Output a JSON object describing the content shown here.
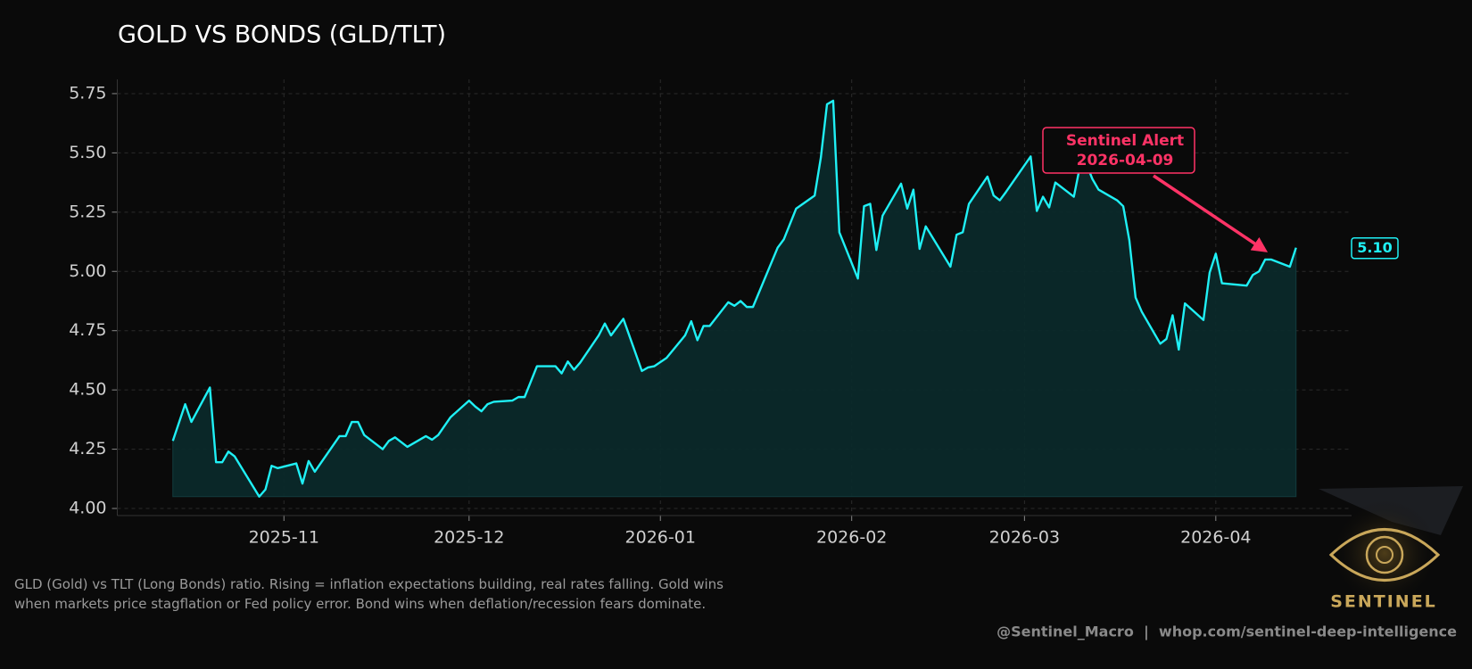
{
  "chart_data": {
    "type": "area-line",
    "title": "GOLD VS BONDS (GLD/TLT)",
    "description": "GLD (Gold) vs TLT (Long Bonds) ratio. Rising = inflation expectations building, real rates falling. Gold wins when markets price stagflation or Fed policy error. Bond wins when deflation/recession fears dominate.",
    "credit": "@Sentinel_Macro  |  whop.com/sentinel-deep-intelligence",
    "logo": "SENTINEL",
    "x": [
      "2025-10-14",
      "2025-10-16",
      "2025-10-17",
      "2025-10-20",
      "2025-10-21",
      "2025-10-22",
      "2025-10-23",
      "2025-10-24",
      "2025-10-28",
      "2025-10-29",
      "2025-10-30",
      "2025-10-31",
      "2025-11-03",
      "2025-11-04",
      "2025-11-05",
      "2025-11-06",
      "2025-11-10",
      "2025-11-11",
      "2025-11-12",
      "2025-11-13",
      "2025-11-14",
      "2025-11-17",
      "2025-11-18",
      "2025-11-19",
      "2025-11-21",
      "2025-11-24",
      "2025-11-25",
      "2025-11-26",
      "2025-11-28",
      "2025-12-01",
      "2025-12-02",
      "2025-12-03",
      "2025-12-04",
      "2025-12-05",
      "2025-12-08",
      "2025-12-09",
      "2025-12-10",
      "2025-12-12",
      "2025-12-15",
      "2025-12-16",
      "2025-12-17",
      "2025-12-18",
      "2025-12-19",
      "2025-12-22",
      "2025-12-23",
      "2025-12-24",
      "2025-12-26",
      "2025-12-29",
      "2025-12-30",
      "2025-12-31",
      "2026-01-02",
      "2026-01-05",
      "2026-01-06",
      "2026-01-07",
      "2026-01-08",
      "2026-01-09",
      "2026-01-12",
      "2026-01-13",
      "2026-01-14",
      "2026-01-15",
      "2026-01-16",
      "2026-01-20",
      "2026-01-21",
      "2026-01-23",
      "2026-01-26",
      "2026-01-27",
      "2026-01-28",
      "2026-01-29",
      "2026-01-30",
      "2026-02-02",
      "2026-02-03",
      "2026-02-04",
      "2026-02-05",
      "2026-02-06",
      "2026-02-09",
      "2026-02-10",
      "2026-02-11",
      "2026-02-12",
      "2026-02-13",
      "2026-02-17",
      "2026-02-18",
      "2026-02-19",
      "2026-02-20",
      "2026-02-23",
      "2026-02-24",
      "2026-02-25",
      "2026-02-26",
      "2026-03-02",
      "2026-03-03",
      "2026-03-04",
      "2026-03-05",
      "2026-03-06",
      "2026-03-09",
      "2026-03-10",
      "2026-03-11",
      "2026-03-12",
      "2026-03-13",
      "2026-03-16",
      "2026-03-17",
      "2026-03-18",
      "2026-03-19",
      "2026-03-20",
      "2026-03-23",
      "2026-03-24",
      "2026-03-25",
      "2026-03-26",
      "2026-03-27",
      "2026-03-30",
      "2026-03-31",
      "2026-04-01",
      "2026-04-02",
      "2026-04-06",
      "2026-04-07",
      "2026-04-08",
      "2026-04-09",
      "2026-04-10",
      "2026-04-13",
      "2026-04-14"
    ],
    "series": [
      {
        "name": "GLD/TLT",
        "color": "#1ff0f5",
        "fill": "#0a2a2b",
        "values": [
          4.285,
          4.44,
          4.365,
          4.51,
          4.195,
          4.195,
          4.24,
          4.22,
          4.05,
          4.08,
          4.18,
          4.17,
          4.19,
          4.105,
          4.2,
          4.155,
          4.305,
          4.305,
          4.365,
          4.365,
          4.31,
          4.25,
          4.285,
          4.3,
          4.26,
          4.305,
          4.29,
          4.31,
          4.385,
          4.455,
          4.43,
          4.41,
          4.44,
          4.45,
          4.455,
          4.47,
          4.47,
          4.6,
          4.6,
          4.57,
          4.62,
          4.585,
          4.615,
          4.73,
          4.78,
          4.73,
          4.8,
          4.58,
          4.595,
          4.6,
          4.635,
          4.73,
          4.79,
          4.71,
          4.77,
          4.77,
          4.87,
          4.855,
          4.875,
          4.85,
          4.85,
          5.1,
          5.135,
          5.265,
          5.32,
          5.48,
          5.705,
          5.72,
          5.165,
          4.97,
          5.275,
          5.285,
          5.09,
          5.235,
          5.37,
          5.265,
          5.345,
          5.095,
          5.19,
          5.02,
          5.155,
          5.165,
          5.285,
          5.4,
          5.32,
          5.3,
          5.335,
          5.485,
          5.255,
          5.315,
          5.27,
          5.375,
          5.315,
          5.445,
          5.455,
          5.39,
          5.345,
          5.3,
          5.275,
          5.13,
          4.89,
          4.83,
          4.695,
          4.715,
          4.815,
          4.67,
          4.865,
          4.795,
          4.995,
          5.075,
          4.95,
          4.94,
          4.985,
          5.0,
          5.05,
          5.05,
          5.02,
          5.1
        ]
      }
    ],
    "last_value": {
      "value": 5.1,
      "label": "5.10"
    },
    "annotation": {
      "label": "Sentinel Alert",
      "date": "2026-04-09",
      "color": "#ff3366"
    },
    "xlim": [
      "2025-10-05",
      "2026-04-23"
    ],
    "xticks": [
      "2025-11",
      "2025-12",
      "2026-01",
      "2026-02",
      "2026-03",
      "2026-04"
    ],
    "ylim": [
      3.97,
      5.81
    ],
    "yticks": [
      {
        "value": 4,
        "label": "4.00"
      },
      {
        "value": 4.25,
        "label": "4.25"
      },
      {
        "value": 4.5,
        "label": "4.50"
      },
      {
        "value": 4.75,
        "label": "4.75"
      },
      {
        "value": 5,
        "label": "5.00"
      },
      {
        "value": 5.25,
        "label": "5.25"
      },
      {
        "value": 5.5,
        "label": "5.50"
      },
      {
        "value": 5.75,
        "label": "5.75"
      }
    ],
    "grid": true
  }
}
